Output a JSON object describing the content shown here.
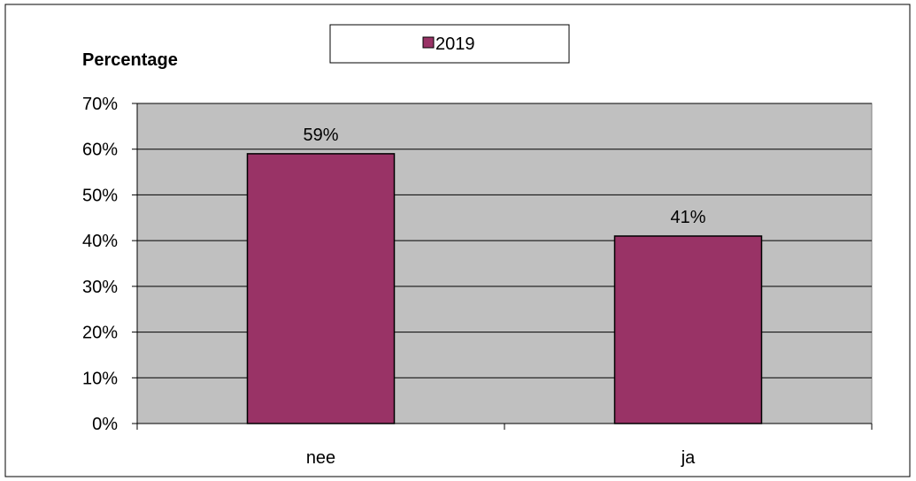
{
  "chart_data": {
    "type": "bar",
    "ylabel": "Percentage",
    "categories": [
      "nee",
      "ja"
    ],
    "series": [
      {
        "name": "2019",
        "values": [
          59,
          41
        ],
        "color": "#993366"
      }
    ],
    "data_labels": [
      "59%",
      "41%"
    ],
    "ylim": [
      0,
      70
    ],
    "ytick_values": [
      0,
      10,
      20,
      30,
      40,
      50,
      60,
      70
    ],
    "ytick_labels": [
      "0%",
      "10%",
      "20%",
      "30%",
      "40%",
      "50%",
      "60%",
      "70%"
    ],
    "grid": true,
    "legend_position": "top-center",
    "plot_background": "#c0c0c0"
  }
}
